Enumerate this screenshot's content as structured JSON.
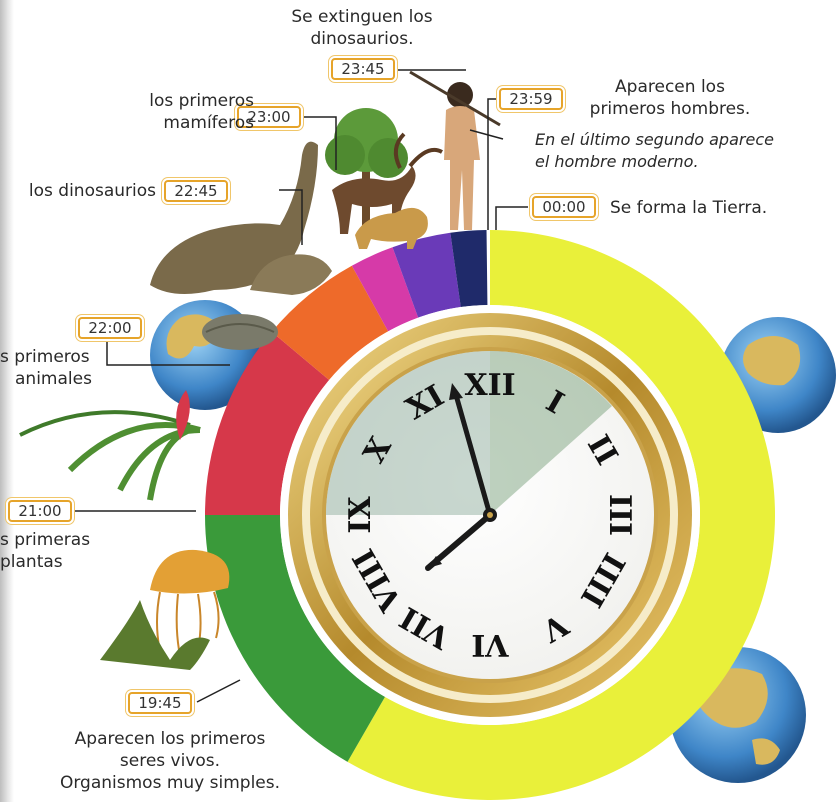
{
  "events": {
    "dinosaurs_extinct": {
      "time": "23:45",
      "label_1": "Se extinguen los",
      "label_2": "dinosaurios."
    },
    "first_humans": {
      "time": "23:59",
      "label_1": "Aparecen los",
      "label_2": "primeros hombres."
    },
    "modern_human": {
      "label_1": "En el último segundo aparece",
      "label_2": "el hombre moderno."
    },
    "earth_forms": {
      "time": "00:00",
      "label": "Se forma la Tierra."
    },
    "first_mammals": {
      "time": "23:00",
      "label_1": "los primeros",
      "label_2": "mamíferos"
    },
    "dinosaurs": {
      "time": "22:45",
      "label": "los dinosaurios"
    },
    "first_animals": {
      "time": "22:00",
      "label_1": "s primeros",
      "label_2": "animales"
    },
    "first_plants": {
      "time": "21:00",
      "label_1": "s primeras",
      "label_2": "plantas"
    },
    "first_life": {
      "time": "19:45",
      "label_1": "Aparecen los primeros",
      "label_2": "seres vivos.",
      "label_3": "Organismos muy simples."
    }
  },
  "clock": {
    "numerals": [
      "XII",
      "I",
      "II",
      "III",
      "IIII",
      "V",
      "VI",
      "VII",
      "VIII",
      "IX",
      "X",
      "XI"
    ]
  },
  "colors": {
    "earth_formation": "#e9f03a",
    "first_life": "#3a9a3a",
    "first_plants": "#d6384a",
    "first_animals": "#ee6a2a",
    "dinosaurs": "#d63aa8",
    "mammals": "#6a3ab8",
    "humans": "#1f2a6a",
    "clock_frame": "#c9a24a",
    "time_box_border": "#e6a42a"
  }
}
